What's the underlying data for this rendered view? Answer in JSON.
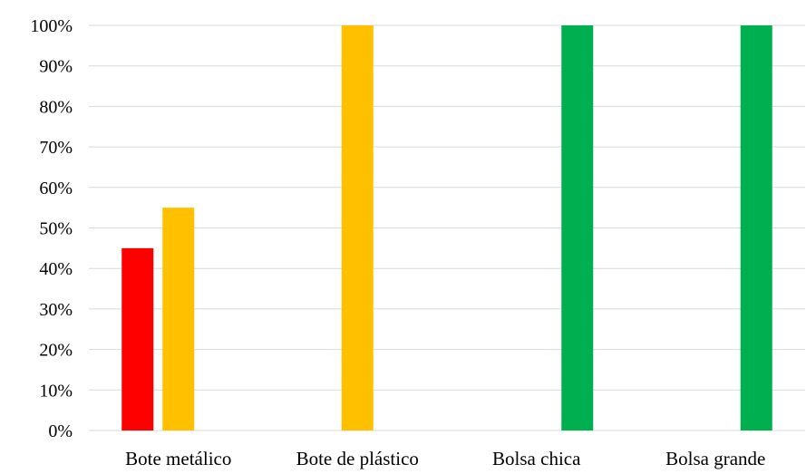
{
  "chart_data": {
    "type": "bar",
    "categories": [
      "Bote metálico",
      "Bote de plástico",
      "Bolsa chica",
      "Bolsa grande"
    ],
    "series": [
      {
        "color": "#FF0000",
        "values": [
          45,
          0,
          0,
          0
        ]
      },
      {
        "color": "#FFC000",
        "values": [
          55,
          100,
          0,
          0
        ]
      },
      {
        "color": "#00B050",
        "values": [
          0,
          0,
          100,
          100
        ]
      }
    ],
    "y_ticks": [
      "0%",
      "10%",
      "20%",
      "30%",
      "40%",
      "50%",
      "60%",
      "70%",
      "80%",
      "90%",
      "100%"
    ],
    "ylim": [
      0,
      100
    ],
    "y_unit": "%",
    "grid": true,
    "grid_color": "#D9D9D9",
    "title": "",
    "xlabel": "",
    "ylabel": "",
    "legend": "none"
  }
}
